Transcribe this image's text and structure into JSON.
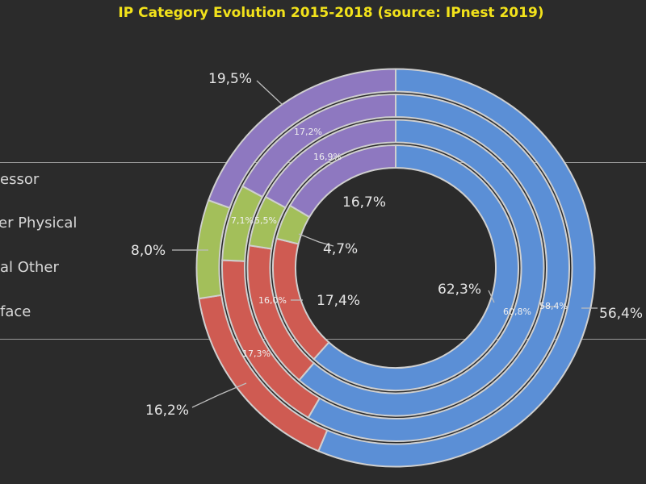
{
  "chart_data": {
    "type": "donut",
    "title": "IP Category Evolution 2015-2018 (source: IPnest 2019)",
    "legend": {
      "placement": "left",
      "entries": [
        "essor",
        "er Physical",
        "al Other",
        "face"
      ]
    },
    "segment_colors": [
      "#5b8fd6",
      "#cf5b52",
      "#a3bf5a",
      "#8e78c0"
    ],
    "rings": [
      {
        "values": [
          62.3,
          17.4,
          4.7,
          16.7
        ],
        "labels": [
          "62,3%",
          "17,4%",
          "4,7%",
          "16,7%"
        ]
      },
      {
        "values": [
          60.8,
          16.0,
          5.5,
          16.9
        ],
        "labels": [
          "60,8%",
          "16,0%",
          "5,5%",
          "16,9%"
        ]
      },
      {
        "values": [
          58.4,
          17.3,
          7.1,
          17.2
        ],
        "labels": [
          "58,4%",
          "17,3%",
          "7,1%",
          "17,2%"
        ]
      },
      {
        "values": [
          56.4,
          16.2,
          8.0,
          19.5
        ],
        "labels": [
          "56,4%",
          "16,2%",
          "8,0%",
          "19,5%"
        ]
      }
    ]
  }
}
